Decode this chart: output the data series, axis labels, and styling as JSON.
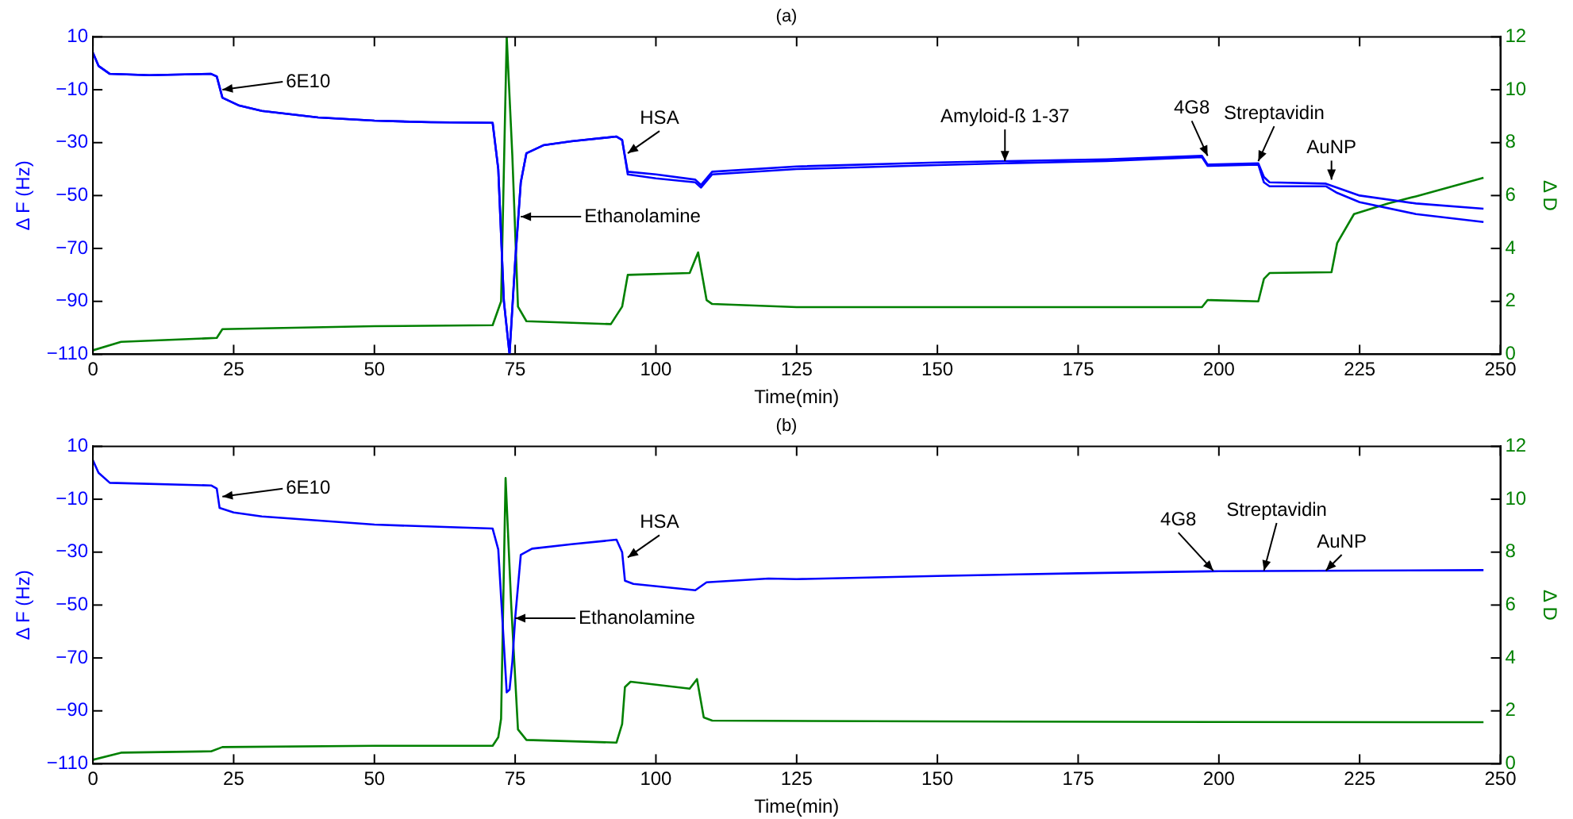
{
  "chart_data": [
    {
      "type": "line",
      "title": "(a)",
      "xlabel": "Time(min)",
      "ylabel": "Δ F (Hz)",
      "y2label": "Δ D",
      "xlim": [
        0,
        250
      ],
      "xticks": [
        0,
        25,
        50,
        75,
        100,
        125,
        150,
        175,
        200,
        225,
        250
      ],
      "ylim": [
        -110,
        10
      ],
      "yticks": [
        -110,
        -90,
        -70,
        -50,
        -30,
        -10,
        10
      ],
      "y2lim": [
        0,
        12
      ],
      "y2ticks": [
        0,
        2,
        4,
        6,
        8,
        10,
        12
      ],
      "grid": false,
      "legend": false,
      "marker": "none",
      "line_style": "solid",
      "series": [
        {
          "color": "#0000ff",
          "x": [
            0,
            1,
            3,
            10,
            21,
            22,
            23,
            26,
            30,
            40,
            50,
            60,
            71,
            72,
            73,
            74,
            75,
            76,
            77,
            80,
            85,
            93,
            94,
            95,
            100,
            107,
            108,
            110,
            125,
            150,
            162,
            180,
            197,
            198,
            207,
            208,
            209,
            219,
            221,
            225,
            235,
            247
          ],
          "values": [
            4,
            -1,
            -4,
            -4.5,
            -4,
            -5,
            -13,
            -16,
            -18,
            -20.5,
            -21.7,
            -22.3,
            -22.5,
            -40,
            -90,
            -110,
            -75,
            -45,
            -34,
            -31,
            -29.5,
            -27.7,
            -29,
            -41,
            -42,
            -44,
            -46,
            -41,
            -39,
            -37.5,
            -37,
            -36.3,
            -35,
            -38.3,
            -37.8,
            -43,
            -45,
            -45.5,
            -47,
            -50,
            -53,
            -55
          ]
        },
        {
          "color": "#0000ff",
          "x": [
            0,
            1,
            3,
            10,
            21,
            22,
            23,
            26,
            30,
            40,
            50,
            60,
            71,
            72,
            73,
            74,
            75,
            76,
            77,
            80,
            85,
            93,
            94,
            95,
            100,
            107,
            108,
            110,
            125,
            150,
            162,
            180,
            197,
            198,
            207,
            208,
            209,
            219,
            221,
            225,
            235,
            247
          ],
          "values": [
            4,
            -1,
            -4,
            -4.5,
            -4,
            -5,
            -13,
            -16,
            -18,
            -20.5,
            -21.7,
            -22.3,
            -22.5,
            -40,
            -90,
            -110,
            -75,
            -45,
            -34,
            -31,
            -29.5,
            -27.7,
            -29,
            -42,
            -43.5,
            -45,
            -47,
            -42,
            -40,
            -38.5,
            -37.8,
            -37,
            -35.5,
            -38.8,
            -38.3,
            -45,
            -46.5,
            -46.5,
            -49,
            -52.5,
            -57,
            -60
          ]
        },
        {
          "color": "#008000",
          "axis": "y2",
          "x": [
            0,
            5,
            20,
            22,
            23,
            50,
            71,
            72.5,
            73.5,
            74.5,
            75.5,
            77,
            92,
            94,
            95,
            106,
            107.5,
            109,
            110,
            125,
            150,
            197,
            198,
            207,
            208,
            209,
            220,
            221,
            224,
            230,
            235,
            247
          ],
          "values": [
            0.15,
            0.47,
            0.6,
            0.62,
            0.95,
            1.06,
            1.1,
            2,
            12,
            7.5,
            1.8,
            1.25,
            1.14,
            1.8,
            3,
            3.07,
            3.85,
            2.05,
            1.9,
            1.78,
            1.78,
            1.78,
            2.05,
            2,
            2.85,
            3.07,
            3.1,
            4.2,
            5.3,
            5.7,
            5.97,
            6.67
          ]
        }
      ],
      "annotations": [
        {
          "text": "6E10",
          "x": 23,
          "y": -10
        },
        {
          "text": "Ethanolamine",
          "x": 76,
          "y": -58
        },
        {
          "text": "HSA",
          "x": 95,
          "y": -34
        },
        {
          "text": "Amyloid-ß 1-37",
          "x": 162,
          "y": -37
        },
        {
          "text": "4G8",
          "x": 198,
          "y": -35
        },
        {
          "text": "Streptavidin",
          "x": 207,
          "y": -37
        },
        {
          "text": "AuNP",
          "x": 220,
          "y": -44
        }
      ]
    },
    {
      "type": "line",
      "title": "(b)",
      "xlabel": "Time(min)",
      "ylabel": "Δ F (Hz)",
      "y2label": "Δ D",
      "xlim": [
        0,
        250
      ],
      "xticks": [
        0,
        25,
        50,
        75,
        100,
        125,
        150,
        175,
        200,
        225,
        250
      ],
      "ylim": [
        -110,
        10
      ],
      "yticks": [
        -110,
        -90,
        -70,
        -50,
        -30,
        -10,
        10
      ],
      "y2lim": [
        0,
        12
      ],
      "y2ticks": [
        0,
        2,
        4,
        6,
        8,
        10,
        12
      ],
      "grid": false,
      "legend": false,
      "marker": "none",
      "line_style": "solid",
      "series": [
        {
          "color": "#0000ff",
          "x": [
            0,
            1,
            3,
            21,
            22,
            22.5,
            25,
            30,
            50,
            71,
            72,
            73,
            73.5,
            74,
            74.5,
            75,
            76,
            78,
            85,
            93,
            94,
            94.5,
            96,
            107,
            109,
            120,
            125,
            150,
            175,
            200,
            225,
            247
          ],
          "values": [
            4.7,
            0,
            -3.8,
            -4.8,
            -6,
            -13.3,
            -15,
            -16.5,
            -19.6,
            -21.1,
            -29,
            -65,
            -83,
            -82,
            -71.5,
            -55,
            -31,
            -28.7,
            -27,
            -25.3,
            -30,
            -40.8,
            -42,
            -44.4,
            -41.4,
            -40,
            -40.2,
            -39,
            -38,
            -37.2,
            -37,
            -36.8
          ]
        },
        {
          "color": "#008000",
          "axis": "y2",
          "x": [
            0,
            5,
            21,
            23,
            50,
            71,
            72,
            72.5,
            73.3,
            74.3,
            75.5,
            77,
            93,
            94,
            94.5,
            95.5,
            106,
            107.3,
            108.5,
            110,
            150,
            200,
            247
          ],
          "values": [
            0.15,
            0.42,
            0.47,
            0.63,
            0.68,
            0.68,
            1,
            1.7,
            10.8,
            6,
            1.3,
            0.9,
            0.8,
            1.5,
            2.9,
            3.1,
            2.84,
            3.2,
            1.75,
            1.63,
            1.6,
            1.58,
            1.57
          ]
        }
      ],
      "annotations": [
        {
          "text": "6E10",
          "x": 23,
          "y": -9
        },
        {
          "text": "Ethanolamine",
          "x": 75,
          "y": -55
        },
        {
          "text": "HSA",
          "x": 95,
          "y": -32
        },
        {
          "text": "4G8",
          "x": 199,
          "y": -37
        },
        {
          "text": "Streptavidin",
          "x": 208,
          "y": -37
        },
        {
          "text": "AuNP",
          "x": 219,
          "y": -37
        }
      ]
    }
  ]
}
